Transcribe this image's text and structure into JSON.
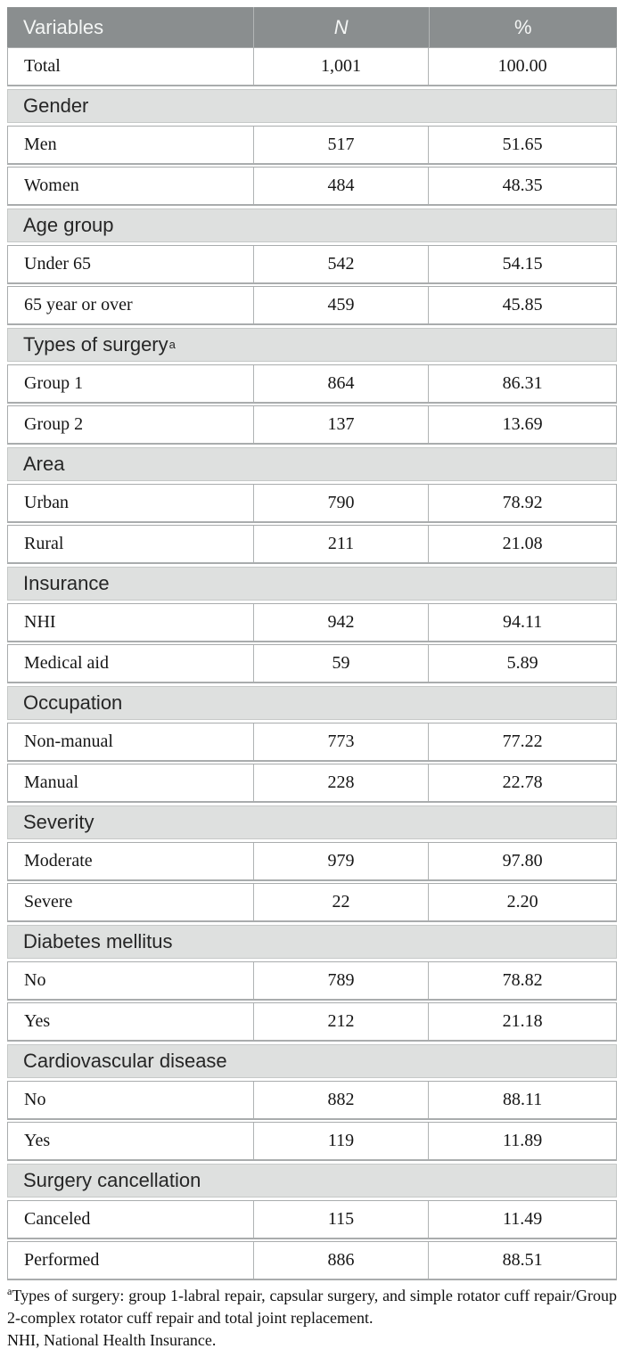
{
  "table": {
    "header": {
      "variables": "Variables",
      "n": "N",
      "pct": "%"
    },
    "total_row": {
      "label": "Total",
      "n": "1,001",
      "pct": "100.00"
    },
    "sections": [
      {
        "title": "Gender",
        "rows": [
          {
            "label": "Men",
            "n": "517",
            "pct": "51.65"
          },
          {
            "label": "Women",
            "n": "484",
            "pct": "48.35"
          }
        ]
      },
      {
        "title": "Age group",
        "rows": [
          {
            "label": "Under 65",
            "n": "542",
            "pct": "54.15"
          },
          {
            "label": "65 year or over",
            "n": "459",
            "pct": "45.85"
          }
        ]
      },
      {
        "title": "Types of surgery",
        "title_sup": "a",
        "rows": [
          {
            "label": "Group 1",
            "n": "864",
            "pct": "86.31"
          },
          {
            "label": "Group 2",
            "n": "137",
            "pct": "13.69"
          }
        ]
      },
      {
        "title": "Area",
        "rows": [
          {
            "label": "Urban",
            "n": "790",
            "pct": "78.92"
          },
          {
            "label": "Rural",
            "n": "211",
            "pct": "21.08"
          }
        ]
      },
      {
        "title": "Insurance",
        "rows": [
          {
            "label": "NHI",
            "n": "942",
            "pct": "94.11"
          },
          {
            "label": "Medical aid",
            "n": "59",
            "pct": "5.89"
          }
        ]
      },
      {
        "title": "Occupation",
        "rows": [
          {
            "label": "Non-manual",
            "n": "773",
            "pct": "77.22"
          },
          {
            "label": "Manual",
            "n": "228",
            "pct": "22.78"
          }
        ]
      },
      {
        "title": "Severity",
        "rows": [
          {
            "label": "Moderate",
            "n": "979",
            "pct": "97.80"
          },
          {
            "label": "Severe",
            "n": "22",
            "pct": "2.20"
          }
        ]
      },
      {
        "title": "Diabetes mellitus",
        "rows": [
          {
            "label": "No",
            "n": "789",
            "pct": "78.82"
          },
          {
            "label": "Yes",
            "n": "212",
            "pct": "21.18"
          }
        ]
      },
      {
        "title": "Cardiovascular disease",
        "rows": [
          {
            "label": "No",
            "n": "882",
            "pct": "88.11"
          },
          {
            "label": "Yes",
            "n": "119",
            "pct": "11.89"
          }
        ]
      },
      {
        "title": "Surgery cancellation",
        "rows": [
          {
            "label": "Canceled",
            "n": "115",
            "pct": "11.49"
          },
          {
            "label": "Performed",
            "n": "886",
            "pct": "88.51"
          }
        ]
      }
    ]
  },
  "footnotes": {
    "note_a_sup": "a",
    "note_a": "Types of surgery: group 1-labral repair, capsular surgery, and simple rotator cuff repair/Group 2-complex rotator cuff repair and total joint replacement.",
    "note_nhi": "NHI, National Health Insurance."
  },
  "colors": {
    "header_bg": "#8a8e8f",
    "header_text": "#f4f6f5",
    "section_band_bg": "#dee0df",
    "row_border": "#a9acad",
    "body_text": "#161616"
  }
}
